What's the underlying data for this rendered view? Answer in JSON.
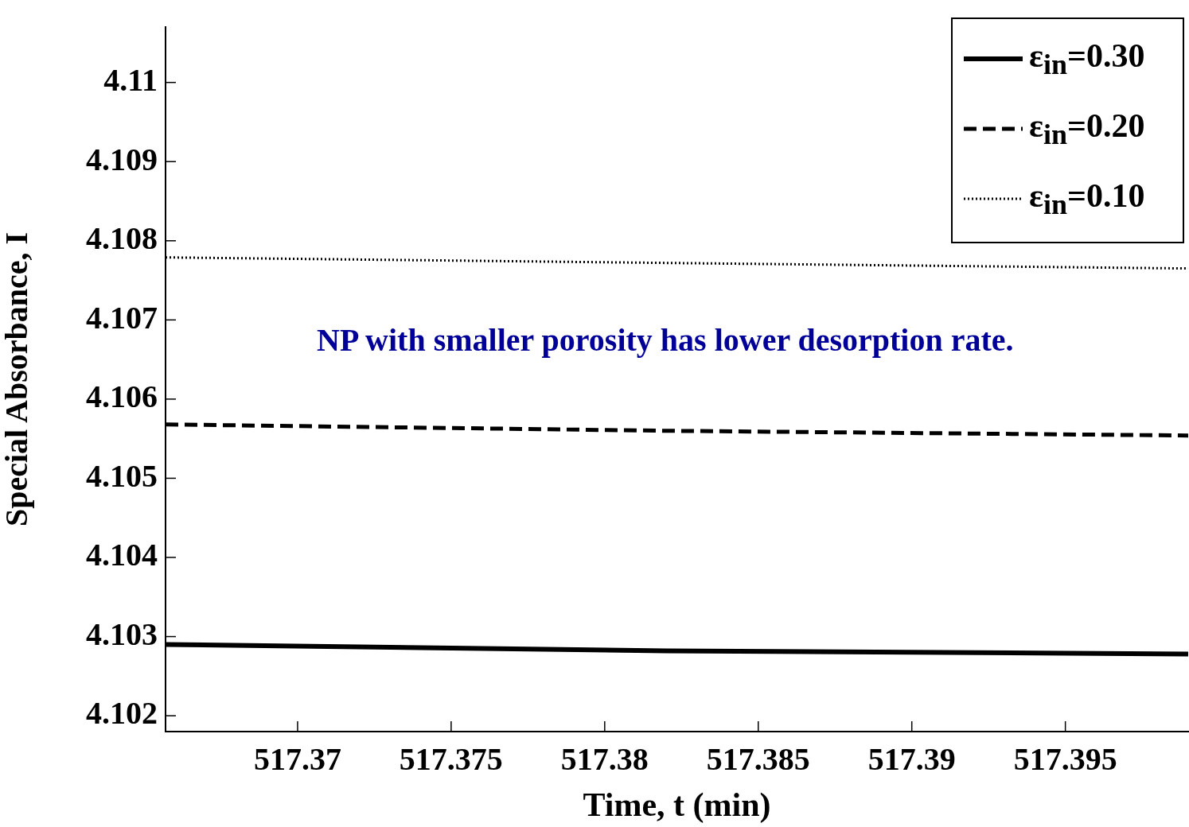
{
  "chart_data": {
    "type": "line",
    "xlabel": "Time, t (min)",
    "ylabel": "Special Absorbance, I",
    "xlim": [
      517.3657,
      517.399
    ],
    "ylim": [
      4.1018,
      4.1107
    ],
    "xticks": [
      517.37,
      517.375,
      517.38,
      517.385,
      517.39,
      517.395
    ],
    "yticks": [
      4.102,
      4.103,
      4.104,
      4.105,
      4.106,
      4.107,
      4.108,
      4.109,
      4.11
    ],
    "grid": false,
    "legend": "top right",
    "marker": "none",
    "annotations": [
      "NP with smaller porosity has lower desorption rate."
    ],
    "series": [
      {
        "name": "ε$_{in}$=0.30",
        "color": "#000000",
        "line_style": "solid",
        "x": [
          517.3657,
          517.382,
          517.399
        ],
        "values": [
          4.1029,
          4.10282,
          4.10278
        ]
      },
      {
        "name": "ε$_{in}$=0.20",
        "color": "#000000",
        "line_style": "dashed",
        "x": [
          517.3657,
          517.382,
          517.399
        ],
        "values": [
          4.10568,
          4.1056,
          4.10554
        ]
      },
      {
        "name": "ε$_{in}$=0.10",
        "color": "#000000",
        "line_style": "dotted",
        "x": [
          517.3657,
          517.382,
          517.399
        ],
        "values": [
          4.10779,
          4.10772,
          4.10765
        ]
      }
    ]
  }
}
